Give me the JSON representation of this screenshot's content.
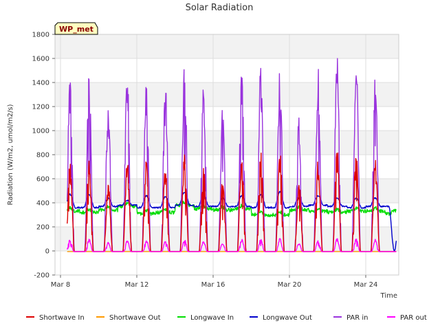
{
  "chart_data": {
    "type": "line",
    "title": "Solar Radiation",
    "badge": "WP_met",
    "xlabel": "Time",
    "ylabel": "Radiation (W/m2, umol/m2/s)",
    "xlim": [
      "Mar 8 00:00",
      "Mar 26 00:00"
    ],
    "ylim": [
      -200,
      1800
    ],
    "yticks": [
      -200,
      0,
      200,
      400,
      600,
      800,
      1000,
      1200,
      1400,
      1600,
      1800
    ],
    "xticks": [
      {
        "label": "Mar 8",
        "day": 8
      },
      {
        "label": "Mar 12",
        "day": 12
      },
      {
        "label": "Mar 16",
        "day": 16
      },
      {
        "label": "Mar 20",
        "day": 20
      },
      {
        "label": "Mar 24",
        "day": 24
      }
    ],
    "grid": true,
    "legend_position": "bottom",
    "days": [
      8.5,
      9.5,
      10.5,
      11.5,
      12.5,
      13.5,
      14.5,
      15.5,
      16.5,
      17.5,
      18.5,
      19.5,
      20.5,
      21.5,
      22.5,
      23.5,
      24.5,
      25.5
    ],
    "series": [
      {
        "name": "Shortwave In",
        "color": "#dd0000",
        "daily_peaks": [
          760,
          780,
          570,
          780,
          770,
          730,
          830,
          730,
          610,
          840,
          830,
          840,
          590,
          790,
          870,
          850,
          770,
          0
        ]
      },
      {
        "name": "Shortwave Out",
        "color": "#ff9900",
        "daily_peaks": [
          0,
          0,
          0,
          0,
          0,
          0,
          0,
          0,
          0,
          0,
          0,
          0,
          0,
          0,
          0,
          0,
          0,
          0
        ]
      },
      {
        "name": "Longwave In",
        "color": "#00dd00",
        "daily_values": [
          330,
          320,
          340,
          370,
          310,
          320,
          380,
          350,
          340,
          350,
          300,
          300,
          340,
          330,
          320,
          330,
          330,
          310
        ]
      },
      {
        "name": "Longwave Out",
        "color": "#0000cc",
        "daily_values": [
          360,
          360,
          370,
          380,
          360,
          360,
          380,
          370,
          370,
          370,
          360,
          360,
          370,
          380,
          370,
          360,
          370,
          370
        ],
        "daily_peaks": [
          470,
          470,
          440,
          420,
          460,
          450,
          490,
          460,
          440,
          460,
          470,
          490,
          440,
          460,
          440,
          440,
          440,
          0
        ]
      },
      {
        "name": "PAR in",
        "color": "#9933dd",
        "daily_peaks": [
          1480,
          1510,
          1280,
          1540,
          1490,
          1410,
          1640,
          1420,
          1220,
          1620,
          1610,
          1610,
          1140,
          1550,
          1730,
          1670,
          1610,
          0
        ]
      },
      {
        "name": "PAR out",
        "color": "#ff00ff",
        "daily_peaks": [
          105,
          108,
          80,
          95,
          100,
          90,
          108,
          90,
          70,
          110,
          110,
          110,
          75,
          100,
          110,
          110,
          105,
          0
        ]
      }
    ]
  }
}
